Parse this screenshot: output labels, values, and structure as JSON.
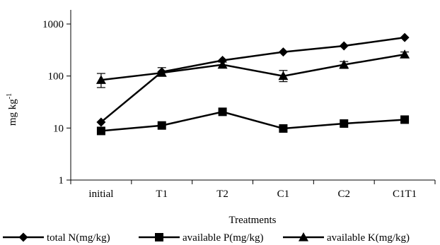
{
  "chart_data": {
    "type": "line",
    "title": "",
    "xlabel": "Treatments",
    "ylabel": "mg kg",
    "ylabel_superscript": "-1",
    "y_scale": "log",
    "ylim": [
      1,
      1000
    ],
    "y_ticks": [
      1,
      10,
      100,
      1000
    ],
    "y_tick_labels": [
      "1",
      "10",
      "100",
      "1000"
    ],
    "categories": [
      "initial",
      "T1",
      "T2",
      "C1",
      "C2",
      "C1T1"
    ],
    "legend_position": "bottom",
    "grid": false,
    "series": [
      {
        "name": "total N(mg/kg)",
        "marker": "diamond",
        "color": "#000000",
        "values": [
          13,
          120,
          200,
          290,
          380,
          550
        ]
      },
      {
        "name": "available P(mg/kg)",
        "marker": "square",
        "color": "#000000",
        "values": [
          8.8,
          11.2,
          20.5,
          9.8,
          12.2,
          14.5
        ]
      },
      {
        "name": "available K(mg/kg)",
        "marker": "triangle",
        "color": "#000000",
        "values": [
          84,
          115,
          165,
          100,
          165,
          260
        ],
        "error_low": [
          60,
          100,
          145,
          78,
          140,
          225
        ],
        "error_high": [
          112,
          145,
          185,
          128,
          190,
          290
        ]
      }
    ]
  }
}
